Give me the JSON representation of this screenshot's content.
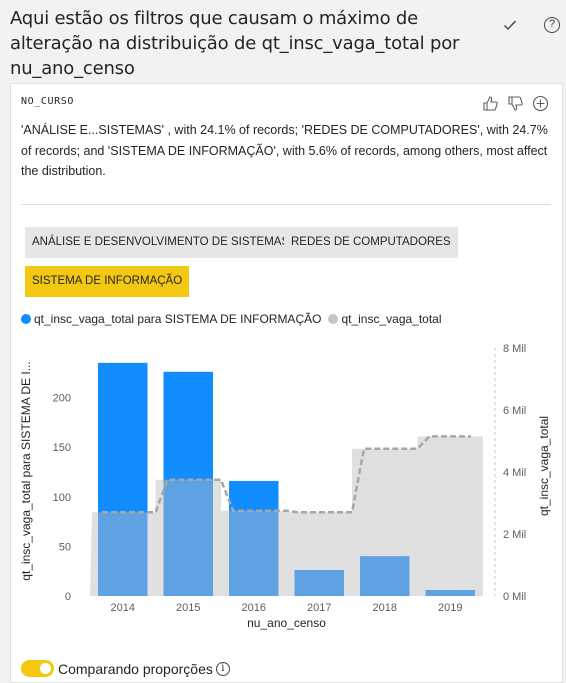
{
  "header": {
    "title": "Aqui estão os filtros que causam o máximo de alteração na distribuição de qt_insc_vaga_total por nu_ano_censo",
    "check_icon": "check-icon",
    "help_label": "?"
  },
  "card": {
    "field_name": "NO_CURSO",
    "description": "'ANÁLISE E...SISTEMAS' , with 24.1% of records; 'REDES DE COMPUTADORES', with 24.7% of records; and 'SISTEMA DE INFORMAÇÃO', with 5.6% of records, among others, most affect the distribution.",
    "chips": [
      {
        "label": "ANÁLISE E DESENVOLVIMENTO DE SISTEMAS",
        "selected": false
      },
      {
        "label": "REDES DE COMPUTADORES",
        "selected": false
      },
      {
        "label": "SISTEMA DE INFORMAÇÃO",
        "selected": true
      }
    ],
    "toggle_label": "Comparando proporções",
    "info_label": "i"
  },
  "colors": {
    "primary": "#118dff",
    "overlay": "#5ea2e3",
    "total": "#e0e0e0",
    "total_line": "#a7a7a7",
    "accent": "#f2c811"
  },
  "chart_data": {
    "type": "bar",
    "categories": [
      "2014",
      "2015",
      "2016",
      "2017",
      "2018",
      "2019"
    ],
    "series": [
      {
        "name": "qt_insc_vaga_total para SISTEMA DE INFORMAÇÃO",
        "values": [
          235,
          226,
          116,
          26,
          40,
          6
        ],
        "axis": "left",
        "color": "#118dff"
      },
      {
        "name": "qt_insc_vaga_total",
        "values": [
          2700,
          3750,
          2750,
          2700,
          4750,
          5150
        ],
        "axis": "right",
        "color": "#e0e0e0"
      }
    ],
    "xlabel": "nu_ano_censo",
    "ylabel_left": "qt_insc_vaga_total para SISTEMA DE I...",
    "ylabel_right": "qt_insc_vaga_total",
    "ylim_left": [
      0,
      250
    ],
    "yticks_left": [
      0,
      50,
      100,
      150,
      200
    ],
    "ylim_right": [
      0,
      8000
    ],
    "yticks_right": [
      0,
      2000,
      4000,
      6000,
      8000
    ],
    "yticklabels_right": [
      "0 Mil",
      "2 Mil",
      "4 Mil",
      "6 Mil",
      "8 Mil"
    ],
    "legend_position": "top-left"
  }
}
